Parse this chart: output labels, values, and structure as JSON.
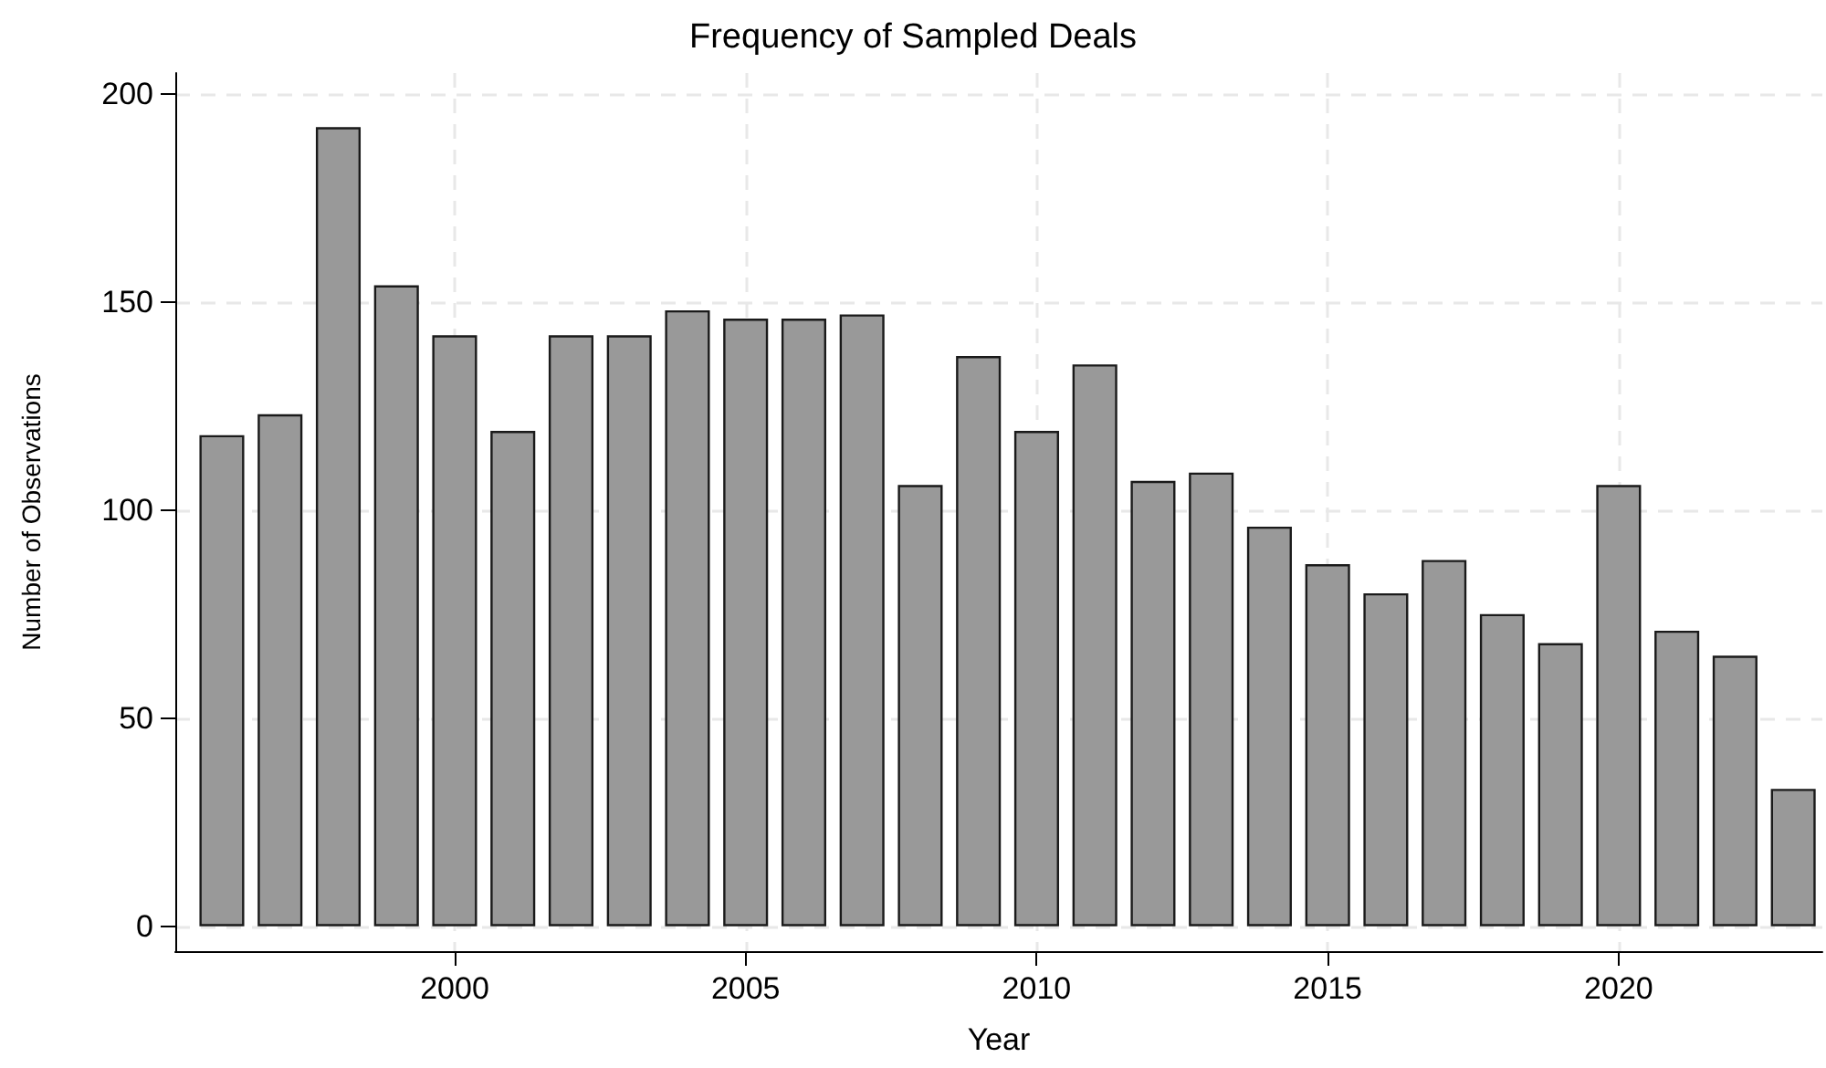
{
  "chart_data": {
    "type": "bar",
    "title": "Frequency of Sampled Deals",
    "xlabel": "Year",
    "ylabel": "Number of Observations",
    "x": [
      1996,
      1997,
      1998,
      1999,
      2000,
      2001,
      2002,
      2003,
      2004,
      2005,
      2006,
      2007,
      2008,
      2009,
      2010,
      2011,
      2012,
      2013,
      2014,
      2015,
      2016,
      2017,
      2018,
      2019,
      2020,
      2021,
      2022,
      2023
    ],
    "values": [
      118,
      123,
      192,
      154,
      142,
      119,
      142,
      142,
      148,
      146,
      146,
      147,
      106,
      137,
      119,
      135,
      107,
      109,
      96,
      87,
      80,
      88,
      75,
      68,
      106,
      71,
      65,
      33
    ],
    "color": "#999999",
    "xlim": [
      1995.2,
      2023.5
    ],
    "xticks": [
      2000,
      2005,
      2010,
      2015,
      2020
    ],
    "ylim": [
      -6,
      205
    ],
    "yticks": [
      0,
      50,
      100,
      150,
      200
    ],
    "grid": true
  }
}
